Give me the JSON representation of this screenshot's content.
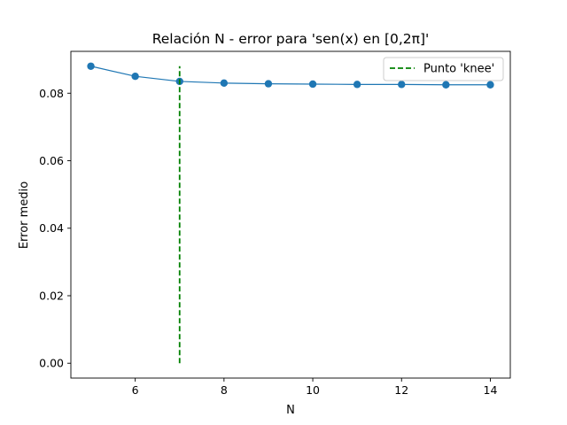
{
  "chart_data": {
    "type": "line",
    "title": "Relación N - error para 'sen(x) en [0,2π]'",
    "xlabel": "N",
    "ylabel": "Error medio",
    "x": [
      5,
      6,
      7,
      8,
      9,
      10,
      11,
      12,
      13,
      14
    ],
    "series": [
      {
        "values": [
          0.088,
          0.085,
          0.0835,
          0.083,
          0.0828,
          0.0827,
          0.0826,
          0.0826,
          0.0825,
          0.0825
        ],
        "color": "#1f77b4",
        "marker": "circle"
      }
    ],
    "vline": {
      "x": 7,
      "ymin": 0.0,
      "ymax": 0.088,
      "label": "Punto 'knee'",
      "color": "#008000",
      "style": "dashed"
    },
    "xlim": [
      4.55,
      14.45
    ],
    "ylim": [
      -0.0044,
      0.0924
    ],
    "xticks": [
      6,
      8,
      10,
      12,
      14
    ],
    "yticks": [
      0.0,
      0.02,
      0.04,
      0.06,
      0.08
    ],
    "ytick_labels": [
      "0.00",
      "0.02",
      "0.04",
      "0.06",
      "0.08"
    ],
    "legend": {
      "position": "top-right",
      "entries": [
        "Punto 'knee'"
      ]
    },
    "grid": false
  }
}
